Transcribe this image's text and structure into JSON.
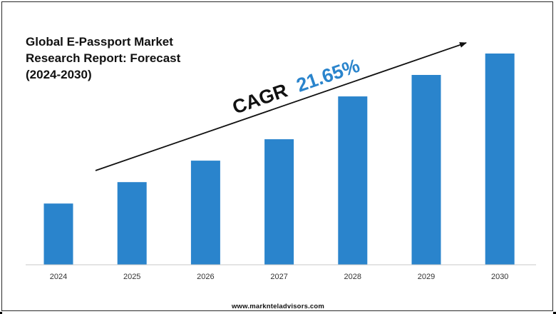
{
  "title_lines": [
    "Global E-Passport Market",
    "Research Report: Forecast",
    "(2024-2030)"
  ],
  "cagr": {
    "label": "CAGR",
    "value": "21.65%"
  },
  "footer": {
    "website": "www.marknteladvisors.com"
  },
  "colors": {
    "bar": "#2a84cc",
    "cagr_value": "#2a84cc",
    "text": "#111111",
    "axis": "#c8c8c8"
  },
  "chart_data": {
    "type": "bar",
    "title": "Global E-Passport Market Research Report: Forecast (2024-2030)",
    "categories": [
      "2024",
      "2025",
      "2026",
      "2027",
      "2028",
      "2029",
      "2030"
    ],
    "values": [
      1.0,
      1.35,
      1.7,
      2.05,
      2.75,
      3.1,
      3.45
    ],
    "ylim": [
      0,
      3.45
    ],
    "value_labels_shown": false,
    "y_axis_shown": false,
    "grid": false,
    "annotation": "CAGR 21.65%"
  }
}
